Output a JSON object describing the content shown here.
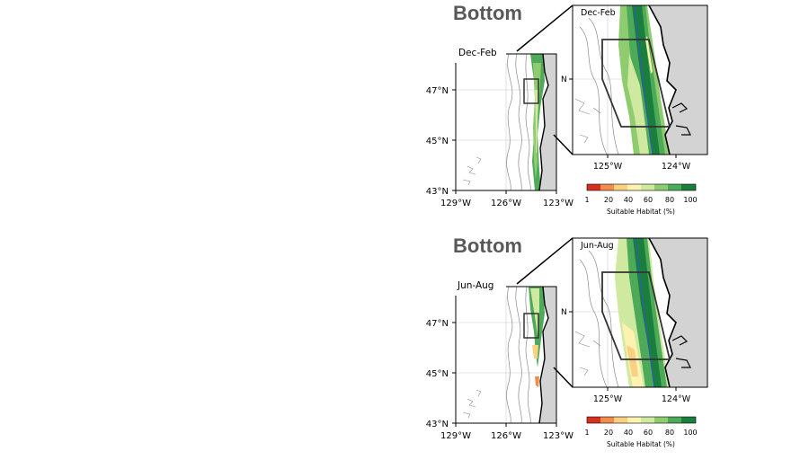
{
  "colors": {
    "land": "#d3d3d3",
    "bathymetry": "#8a8a8a",
    "axes_frame": "#000000",
    "box": "#333333",
    "blue_contour": "#2f5fa8",
    "scale": [
      "#d7301f",
      "#f28c4b",
      "#fcd082",
      "#fdf2b0",
      "#cfe9a0",
      "#8fcc6f",
      "#4daa58",
      "#1a7f3d"
    ]
  },
  "panels": [
    {
      "title": "Bottom",
      "season": "Dec-Feb",
      "inset_season": "Dec-Feb",
      "lat_ticks": [
        "47°N",
        "45°N",
        "43°N"
      ],
      "lon_ticks": [
        "129°W",
        "126°W",
        "123°W"
      ],
      "inset_lat_tick": "N",
      "inset_lon_ticks": [
        "125°W",
        "124°W"
      ],
      "colorbar_ticks": [
        "1",
        "20",
        "40",
        "60",
        "80",
        "100"
      ],
      "colorbar_label": "Suitable Habitat (%)"
    },
    {
      "title": "Bottom",
      "season": "Jun-Aug",
      "inset_season": "Jun-Aug",
      "lat_ticks": [
        "47°N",
        "45°N",
        "43°N"
      ],
      "lon_ticks": [
        "129°W",
        "126°W",
        "123°W"
      ],
      "inset_lat_tick": "N",
      "inset_lon_ticks": [
        "125°W",
        "124°W"
      ],
      "colorbar_ticks": [
        "1",
        "20",
        "40",
        "60",
        "80",
        "100"
      ],
      "colorbar_label": "Suitable Habitat (%)"
    }
  ]
}
